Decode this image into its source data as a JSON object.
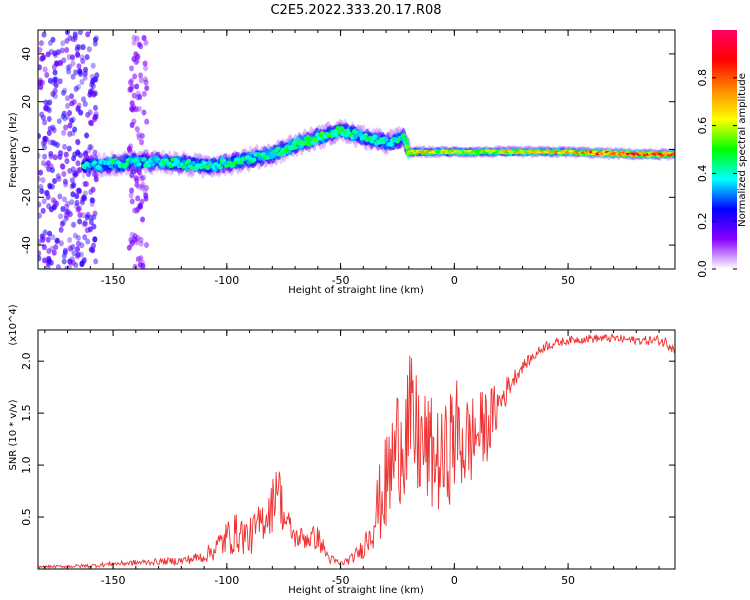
{
  "title": "C2E5.2022.333.20.17.R08",
  "colors": {
    "snr_line": "#ee3333",
    "frame": "#000000"
  },
  "chart_data": [
    {
      "type": "heatmap",
      "xlabel": "Height of straight line (km)",
      "ylabel": "Frequency (Hz)",
      "xlim": [
        -183,
        97
      ],
      "ylim": [
        -50,
        50
      ],
      "xticks": [
        -150,
        -100,
        -50,
        0,
        50
      ],
      "xtick_labels": [
        "-150",
        "-100",
        "-50",
        "0",
        "50"
      ],
      "yticks": [
        -40,
        -20,
        0,
        20,
        40
      ],
      "ytick_labels": [
        "-40",
        "-20",
        "0",
        "20",
        "40"
      ],
      "colorbar": {
        "label": "Normalized spectral amplitude",
        "range": [
          0,
          1
        ],
        "ticks": [
          0.0,
          0.2,
          0.4,
          0.6,
          0.8
        ],
        "tick_labels": [
          "0.0",
          "0.2",
          "0.4",
          "0.6",
          "0.8"
        ],
        "colormap": [
          "#ffffff",
          "#8800ff",
          "#0000ff",
          "#00ffff",
          "#00ff00",
          "#ffff00",
          "#ff8800",
          "#ff0000",
          "#ff0066"
        ]
      },
      "ridge": {
        "x": [
          -163,
          -150,
          -130,
          -110,
          -95,
          -80,
          -70,
          -60,
          -50,
          -40,
          -30,
          -22,
          -20,
          -10,
          0,
          20,
          50,
          80,
          97
        ],
        "freq": [
          -7,
          -6,
          -5,
          -7,
          -5,
          -2,
          2,
          5,
          8,
          5,
          3,
          5,
          -1,
          -1,
          -1,
          -1,
          -1,
          -2,
          -2
        ],
        "amplitude": [
          0.35,
          0.4,
          0.4,
          0.42,
          0.42,
          0.42,
          0.45,
          0.45,
          0.45,
          0.4,
          0.38,
          0.4,
          0.65,
          0.6,
          0.6,
          0.6,
          0.65,
          0.85,
          0.7
        ]
      },
      "noise_columns": [
        {
          "x_from": -183,
          "x_to": -157,
          "amplitude": 0.2
        },
        {
          "x_from": -143,
          "x_to": -135,
          "amplitude": 0.1
        }
      ],
      "grid": false
    },
    {
      "type": "line",
      "xlabel": "Height of straight line (km)",
      "ylabel": "SNR (10 * v/v)",
      "multiplier_label": "(x10^4)",
      "xlim": [
        -183,
        97
      ],
      "ylim": [
        0,
        2.3
      ],
      "xticks": [
        -150,
        -100,
        -50,
        0,
        50
      ],
      "xtick_labels": [
        "-150",
        "-100",
        "-50",
        "0",
        "50"
      ],
      "yticks": [
        0.5,
        1.0,
        1.5,
        2.0
      ],
      "ytick_labels": [
        "0.5",
        "1.0",
        "1.5",
        "2.0"
      ],
      "series": [
        {
          "x": [
            -183,
            -160,
            -150,
            -140,
            -130,
            -120,
            -110,
            -105,
            -100,
            -95,
            -90,
            -85,
            -80,
            -78,
            -75,
            -70,
            -65,
            -60,
            -55,
            -50,
            -45,
            -40,
            -35,
            -30,
            -25,
            -20,
            -15,
            -10,
            -5,
            0,
            5,
            10,
            15,
            20,
            25,
            30,
            35,
            40,
            50,
            60,
            70,
            80,
            90,
            97
          ],
          "y": [
            0.02,
            0.03,
            0.05,
            0.06,
            0.07,
            0.08,
            0.12,
            0.2,
            0.3,
            0.35,
            0.3,
            0.45,
            0.6,
            0.9,
            0.5,
            0.3,
            0.3,
            0.3,
            0.1,
            0.05,
            0.1,
            0.2,
            0.5,
            0.8,
            1.2,
            1.4,
            1.2,
            1.1,
            1.0,
            1.3,
            1.2,
            1.3,
            1.4,
            1.6,
            1.8,
            1.95,
            2.05,
            2.15,
            2.2,
            2.22,
            2.22,
            2.2,
            2.2,
            2.15
          ],
          "noise_amplitude": [
            0.01,
            0.02,
            0.02,
            0.03,
            0.03,
            0.04,
            0.06,
            0.12,
            0.18,
            0.2,
            0.18,
            0.2,
            0.25,
            0.3,
            0.2,
            0.1,
            0.12,
            0.12,
            0.05,
            0.03,
            0.05,
            0.1,
            0.3,
            0.5,
            0.6,
            0.7,
            0.6,
            0.55,
            0.5,
            0.6,
            0.5,
            0.4,
            0.35,
            0.2,
            0.1,
            0.06,
            0.05,
            0.05,
            0.04,
            0.04,
            0.04,
            0.04,
            0.05,
            0.08
          ]
        }
      ],
      "grid": false
    }
  ]
}
